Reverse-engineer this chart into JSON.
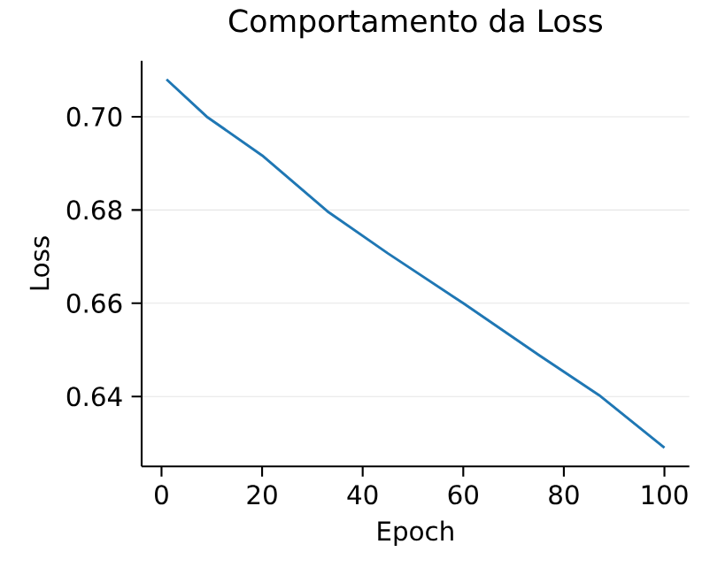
{
  "chart_data": {
    "type": "line",
    "title": "Comportamento da Loss",
    "xlabel": "Epoch",
    "ylabel": "Loss",
    "x": [
      1,
      9,
      20,
      33,
      45,
      60,
      75,
      87,
      100
    ],
    "series": [
      {
        "color": "#1f77b4",
        "values": [
          0.708,
          0.7,
          0.6917,
          0.6797,
          0.6707,
          0.66,
          0.6489,
          0.6403,
          0.629
        ]
      }
    ],
    "xlim": [
      -3.95,
      104.95
    ],
    "ylim": [
      0.625,
      0.712
    ],
    "xticks": [
      0,
      20,
      40,
      60,
      80,
      100
    ],
    "yticks": [
      {
        "value": 0.64,
        "label": "0.64"
      },
      {
        "value": 0.66,
        "label": "0.66"
      },
      {
        "value": 0.68,
        "label": "0.68"
      },
      {
        "value": 0.7,
        "label": "0.70"
      }
    ],
    "grid": "y",
    "marker": "none",
    "line_style": "solid"
  }
}
